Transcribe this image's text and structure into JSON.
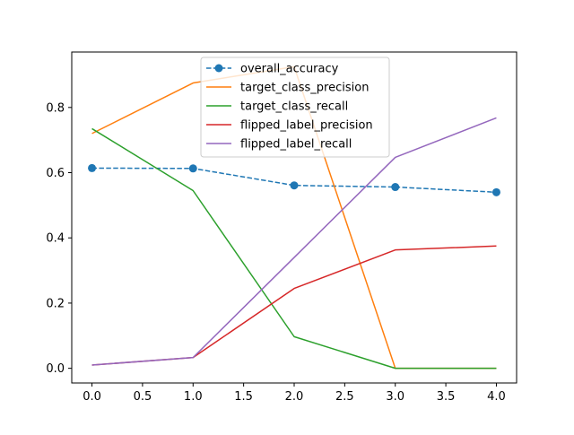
{
  "chart_data": {
    "type": "line",
    "title": "",
    "xlabel": "",
    "ylabel": "",
    "xlim": [
      -0.2,
      4.2
    ],
    "ylim": [
      -0.045,
      0.97
    ],
    "x": [
      0,
      1,
      2,
      3,
      4
    ],
    "x_ticks": [
      0.0,
      0.5,
      1.0,
      1.5,
      2.0,
      2.5,
      3.0,
      3.5,
      4.0
    ],
    "x_tick_labels": [
      "0.0",
      "0.5",
      "1.0",
      "1.5",
      "2.0",
      "2.5",
      "3.0",
      "3.5",
      "4.0"
    ],
    "y_ticks": [
      0.0,
      0.2,
      0.4,
      0.6,
      0.8
    ],
    "y_tick_labels": [
      "0.0",
      "0.2",
      "0.4",
      "0.6",
      "0.8"
    ],
    "grid": false,
    "legend_position": "top-center",
    "series": [
      {
        "name": "overall_accuracy",
        "values": [
          0.614,
          0.613,
          0.561,
          0.556,
          0.54
        ],
        "color": "#1f77b4",
        "dashed": true,
        "markers": true
      },
      {
        "name": "target_class_precision",
        "values": [
          0.72,
          0.875,
          0.925,
          0.0,
          0.0
        ],
        "color": "#ff7f0e",
        "dashed": false,
        "markers": false
      },
      {
        "name": "target_class_recall",
        "values": [
          0.735,
          0.545,
          0.097,
          0.0,
          0.0
        ],
        "color": "#2ca02c",
        "dashed": false,
        "markers": false
      },
      {
        "name": "flipped_label_precision",
        "values": [
          0.01,
          0.033,
          0.245,
          0.363,
          0.375
        ],
        "color": "#d62728",
        "dashed": false,
        "markers": false
      },
      {
        "name": "flipped_label_recall",
        "values": [
          0.01,
          0.033,
          0.34,
          0.647,
          0.768
        ],
        "color": "#9467bd",
        "dashed": false,
        "markers": false
      }
    ]
  }
}
